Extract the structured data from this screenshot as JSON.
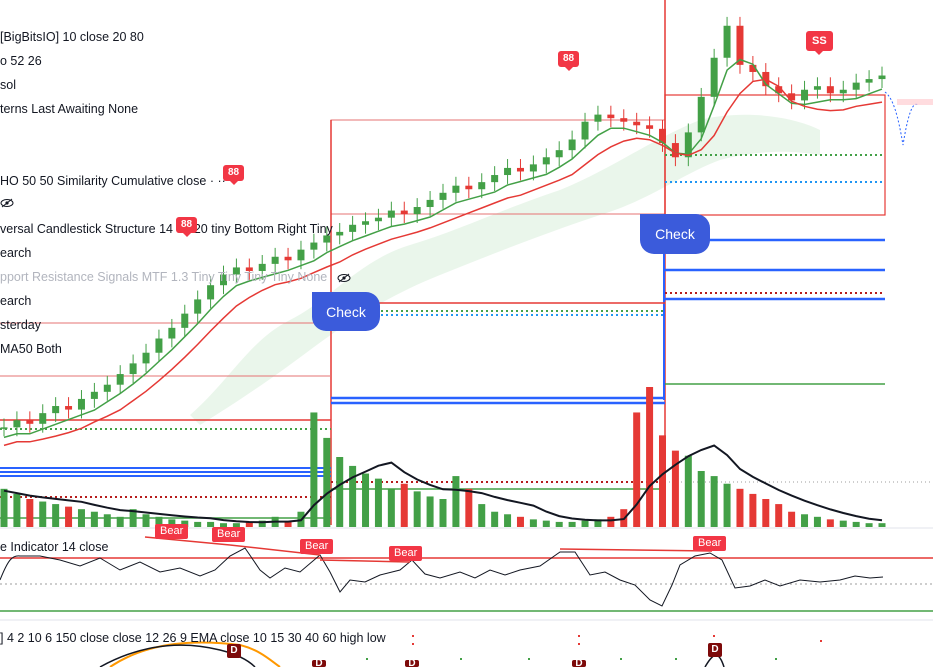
{
  "legend": {
    "l1": "[BigBitsIO] 10 close 20 80",
    "l2": "o 52 26",
    "l3": "sol",
    "l4": "terns Last Awaiting None",
    "l5": "HO 50 50 Similarity Cumulative close",
    "l6": "versal Candlestick Structure 14 80 20 tiny Bottom Right Tiny",
    "l7": "earch",
    "l8": "pport Resistance Signals MTF ",
    "l8b": "1.3 Tiny Tiny Tiny Tiny None",
    "l9": "earch",
    "l10": "sterday",
    "l11": "MA50 Both",
    "osc": "e Indicator 14 close",
    "bottom": "] 4 2 10 6 150 close close 12 26 9 EMA close 10 15 30 40 60 high low"
  },
  "badges": {
    "b88a": "88",
    "b88b": "88",
    "b88c": "88",
    "ss": "SS"
  },
  "bear_labels": [
    "Bear",
    "Bear",
    "Bear",
    "Bear",
    "Bear"
  ],
  "check_labels": [
    "Check",
    "Check"
  ],
  "d_marks": [
    "D",
    "D",
    "D",
    "D",
    "D"
  ],
  "colors": {
    "up": "#26a69a",
    "green": "#43a047",
    "red": "#e53935",
    "blue": "#2962ff",
    "check": "#3b5bdb"
  },
  "chart_data": {
    "type": "candlestick",
    "series": [
      {
        "name": "",
        "values": [
          12,
          14,
          13,
          16,
          18,
          17,
          20,
          22,
          24,
          27,
          30,
          33,
          37,
          40,
          44,
          48,
          52,
          55,
          57,
          56,
          58,
          60,
          59,
          62,
          64,
          66,
          67,
          69,
          70,
          71,
          73,
          72,
          74,
          76,
          78,
          80,
          79,
          81,
          83,
          85,
          84,
          86,
          88,
          90,
          93,
          98,
          100,
          99,
          98,
          97,
          96,
          92,
          88,
          95,
          105,
          116,
          125,
          114,
          112,
          108,
          106,
          104,
          107,
          108,
          106,
          107,
          109,
          110,
          111
        ]
      }
    ],
    "volume": [
      30,
      26,
      22,
      20,
      18,
      16,
      14,
      12,
      10,
      8,
      14,
      10,
      8,
      6,
      5,
      4,
      4,
      3,
      3,
      4,
      5,
      8,
      4,
      12,
      90,
      70,
      55,
      48,
      42,
      38,
      30,
      34,
      28,
      24,
      22,
      40,
      30,
      18,
      12,
      10,
      8,
      6,
      5,
      4,
      4,
      5,
      6,
      8,
      14,
      90,
      110,
      72,
      60,
      56,
      44,
      40,
      34,
      30,
      26,
      22,
      18,
      12,
      10,
      8,
      6,
      5,
      4,
      3,
      3
    ],
    "grid": false
  }
}
